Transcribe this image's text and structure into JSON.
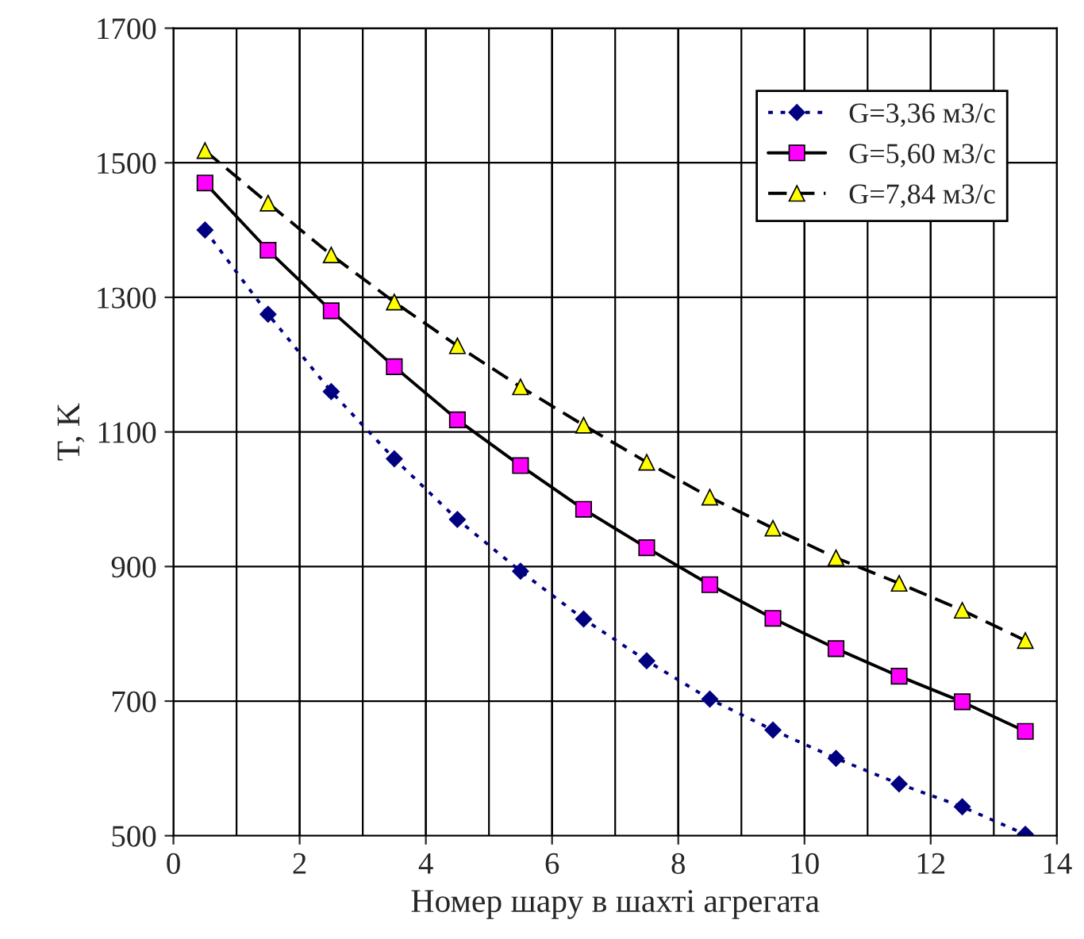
{
  "chart_data": {
    "type": "line",
    "xlabel": "Номер шару в шахті агрегата",
    "ylabel": "T, K",
    "x": [
      0.5,
      1.5,
      2.5,
      3.5,
      4.5,
      5.5,
      6.5,
      7.5,
      8.5,
      9.5,
      10.5,
      11.5,
      12.5,
      13.5
    ],
    "series": [
      {
        "name": "G=3,36 м3/с",
        "color": "#000080",
        "marker": "diamond",
        "line_style": "dotted",
        "values": [
          1400,
          1275,
          1160,
          1060,
          970,
          893,
          822,
          760,
          703,
          657,
          615,
          577,
          543,
          502
        ]
      },
      {
        "name": "G=5,60 м3/с",
        "color": "#ff00ff",
        "marker": "square",
        "line_style": "solid",
        "values": [
          1470,
          1370,
          1280,
          1197,
          1118,
          1050,
          985,
          928,
          873,
          823,
          778,
          737,
          699,
          655
        ]
      },
      {
        "name": "G=7,84 м3/с",
        "color": "#ffff00",
        "marker": "triangle",
        "line_style": "dashed",
        "values": [
          1518,
          1440,
          1363,
          1293,
          1228,
          1167,
          1110,
          1055,
          1003,
          957,
          913,
          875,
          835,
          790
        ]
      }
    ],
    "xlim": [
      0,
      14
    ],
    "xticks": [
      0,
      2,
      4,
      6,
      8,
      10,
      12,
      14
    ],
    "ylim": [
      500,
      1700
    ],
    "yticks": [
      500,
      700,
      900,
      1100,
      1300,
      1500,
      1700
    ],
    "grid": true,
    "legend": "top right"
  }
}
